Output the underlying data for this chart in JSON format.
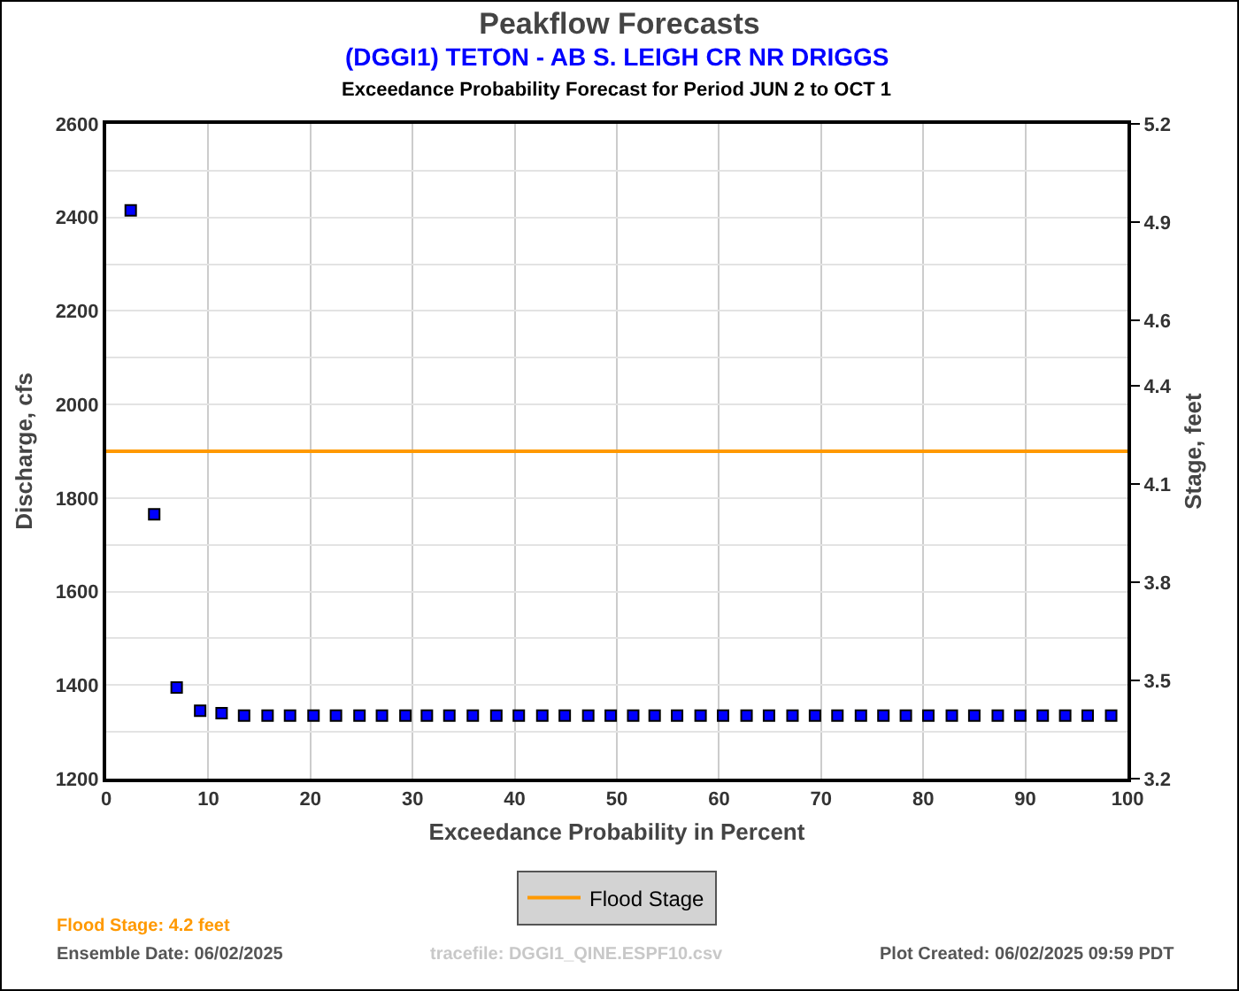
{
  "chart_data": {
    "type": "scatter",
    "title": "Peakflow Forecasts",
    "subtitle": "(DGGI1) TETON - AB S. LEIGH CR NR DRIGGS",
    "xlabel": "Exceedance Probability in Percent",
    "ylabel": "Discharge, cfs",
    "y2label": "Stage, feet",
    "annotations": [
      "Exceedance Probability Forecast for Period JUN 2 to OCT 1",
      "Flood Stage: 4.2 feet",
      "Ensemble Date: 06/02/2025",
      "tracefile: DGGI1_QINE.ESPF10.csv",
      "Plot Created: 06/02/2025 09:59 PDT"
    ],
    "x": [
      2.4,
      4.7,
      6.9,
      9.2,
      11.3,
      13.5,
      15.8,
      18.0,
      20.3,
      22.5,
      24.8,
      27.0,
      29.3,
      31.4,
      33.6,
      35.9,
      38.2,
      40.4,
      42.7,
      44.9,
      47.2,
      49.4,
      51.6,
      53.7,
      55.9,
      58.2,
      60.4,
      62.7,
      64.9,
      67.2,
      69.4,
      71.6,
      73.9,
      76.1,
      78.3,
      80.5,
      82.8,
      85.0,
      87.3,
      89.5,
      91.7,
      93.9,
      96.1,
      98.4
    ],
    "series": [
      {
        "color": "#0000ff",
        "values": [
          2415,
          1765,
          1395,
          1345,
          1340,
          1335,
          1335,
          1335,
          1335,
          1335,
          1335,
          1335,
          1335,
          1335,
          1335,
          1335,
          1335,
          1335,
          1335,
          1335,
          1335,
          1335,
          1335,
          1335,
          1335,
          1335,
          1335,
          1335,
          1335,
          1335,
          1335,
          1335,
          1335,
          1335,
          1335,
          1335,
          1335,
          1335,
          1335,
          1335,
          1335,
          1335,
          1335,
          1335
        ]
      }
    ],
    "xlim": [
      0,
      100
    ],
    "xticks": [
      0,
      10,
      20,
      30,
      40,
      50,
      60,
      70,
      80,
      90,
      100
    ],
    "ylim": [
      1200,
      2600
    ],
    "yticks": [
      1200,
      {
        "value": 1300,
        "label": null
      },
      1400,
      {
        "value": 1500,
        "label": null
      },
      1600,
      {
        "value": 1700,
        "label": null
      },
      1800,
      {
        "value": 1900,
        "label": null
      },
      2000,
      {
        "value": 2100,
        "label": null
      },
      2200,
      {
        "value": 2300,
        "label": null
      },
      2400,
      {
        "value": 2500,
        "label": null
      },
      2600
    ],
    "y2lim": [
      3.2,
      5.2
    ],
    "y2ticks": [
      3.2,
      3.5,
      3.8,
      4.1,
      4.4,
      4.6,
      4.9,
      5.2
    ],
    "ref_lines": [
      {
        "axis": "y2",
        "value": 4.2,
        "label": "Flood Stage",
        "color": "#ff9900"
      }
    ],
    "grid": true,
    "legend": "bottom",
    "marker": "square"
  }
}
